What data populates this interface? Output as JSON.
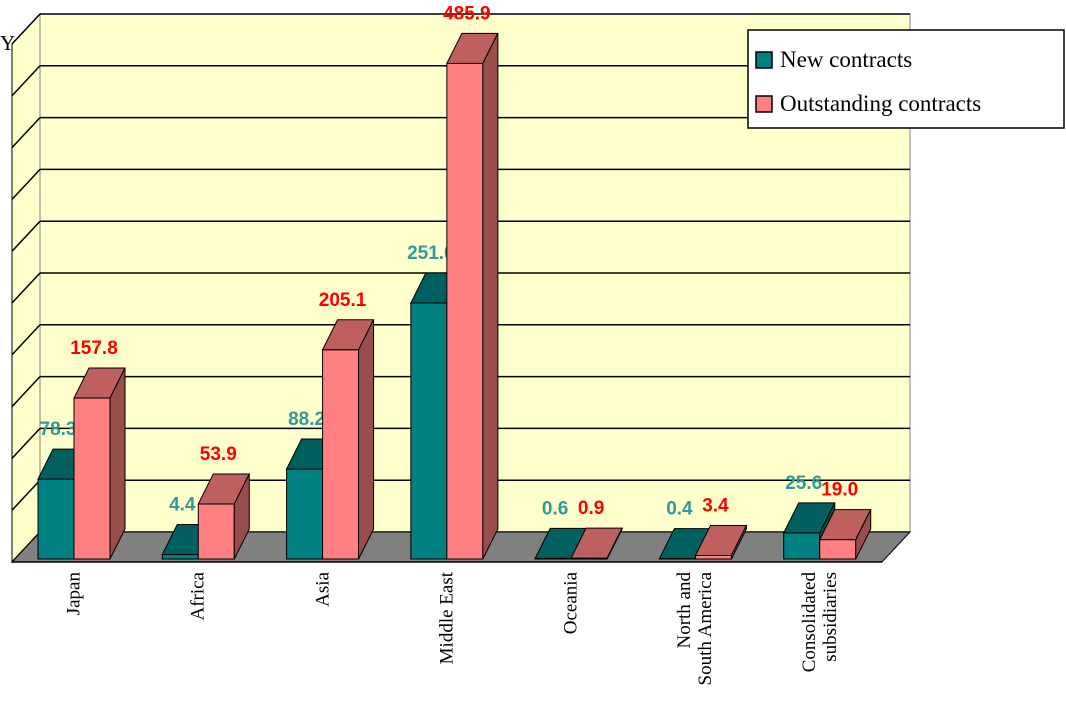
{
  "chart_data": {
    "type": "bar3d",
    "y_label": "Yen)",
    "categories": [
      "Japan",
      "Africa",
      "Asia",
      "Middle East",
      "Oceania",
      "North and South America",
      "Consolidated subsidiaries"
    ],
    "series": [
      {
        "name": "New contracts",
        "color": "#008080",
        "label_color": "#339999",
        "values": [
          78.3,
          4.4,
          88.2,
          251.0,
          0.6,
          0.4,
          25.6
        ],
        "value_labels": [
          "78.3",
          "4.4",
          "88.2",
          "251.0",
          "0.6",
          "0.4",
          "25.6"
        ]
      },
      {
        "name": "Outstanding contracts",
        "color": "#ff8080",
        "label_color": "#ff0000",
        "values": [
          157.8,
          53.9,
          205.1,
          485.9,
          0.9,
          3.4,
          19.0
        ],
        "value_labels": [
          "157.8",
          "53.9",
          "205.1",
          "485.9",
          "0.9",
          "3.4",
          "19.0"
        ]
      }
    ],
    "ylim": [
      0,
      500
    ],
    "yticks": [
      0,
      50,
      100,
      150,
      200,
      250,
      300,
      350,
      400,
      450,
      500
    ],
    "grid": true,
    "legend": "upper right"
  }
}
